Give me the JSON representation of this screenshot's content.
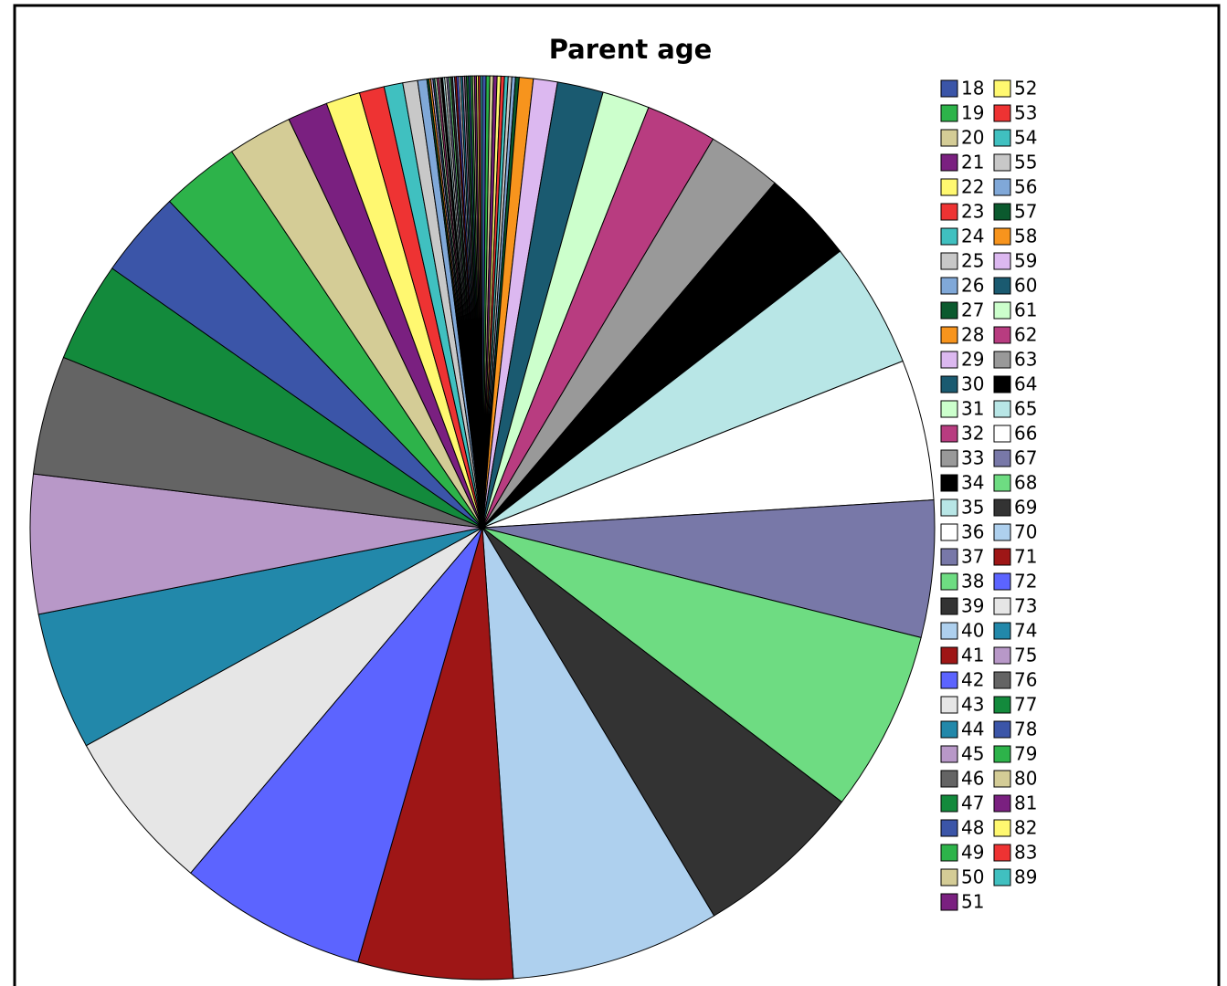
{
  "chart_data": {
    "type": "pie",
    "title": "Parent age",
    "categories": [
      "18",
      "19",
      "20",
      "21",
      "22",
      "23",
      "24",
      "25",
      "26",
      "27",
      "28",
      "29",
      "30",
      "31",
      "32",
      "33",
      "34",
      "35",
      "36",
      "37",
      "38",
      "39",
      "40",
      "41",
      "42",
      "43",
      "44",
      "45",
      "46",
      "47",
      "48",
      "49",
      "50",
      "51",
      "52",
      "53",
      "54",
      "55",
      "56",
      "57",
      "58",
      "59",
      "60",
      "61",
      "62",
      "63",
      "64",
      "65",
      "66",
      "67",
      "68",
      "69",
      "70",
      "71",
      "72",
      "73",
      "74",
      "75",
      "76",
      "77",
      "78",
      "79",
      "80",
      "81",
      "82",
      "83",
      "89"
    ],
    "values": [
      0.13,
      0.13,
      0.13,
      0.13,
      0.13,
      0.13,
      0.13,
      0.13,
      0.13,
      0.13,
      0.5,
      0.86,
      1.64,
      1.69,
      2.53,
      2.67,
      3.33,
      4.47,
      5.03,
      4.89,
      6.47,
      6.06,
      7.47,
      5.53,
      6.72,
      5.83,
      4.94,
      4.97,
      4.25,
      3.58,
      3.11,
      2.81,
      2.31,
      1.44,
      1.22,
      0.89,
      0.67,
      0.53,
      0.33,
      0.07,
      0.07,
      0.07,
      0.07,
      0.07,
      0.07,
      0.07,
      0.07,
      0.07,
      0.07,
      0.07,
      0.07,
      0.07,
      0.07,
      0.07,
      0.07,
      0.07,
      0.07,
      0.07,
      0.07,
      0.07,
      0.07,
      0.07,
      0.07,
      0.07,
      0.07,
      0.07,
      0.07
    ],
    "colors": [
      "#3b55a8",
      "#2db34a",
      "#d4cc96",
      "#7a2080",
      "#fff870",
      "#ee3333",
      "#40c0c0",
      "#c8c8c8",
      "#80a8d8",
      "#0b5a2e",
      "#f7941d",
      "#dcb8f0",
      "#1a5a70",
      "#ccffcc",
      "#b83c80",
      "#999999",
      "#000000",
      "#b8e6e6",
      "#ffffff",
      "#7878a8",
      "#6edc82",
      "#333333",
      "#aed0ee",
      "#9e1616",
      "#5c64ff",
      "#e6e6e6",
      "#2288aa",
      "#b898c8",
      "#646464",
      "#138a3c"
    ],
    "legend": "right"
  }
}
